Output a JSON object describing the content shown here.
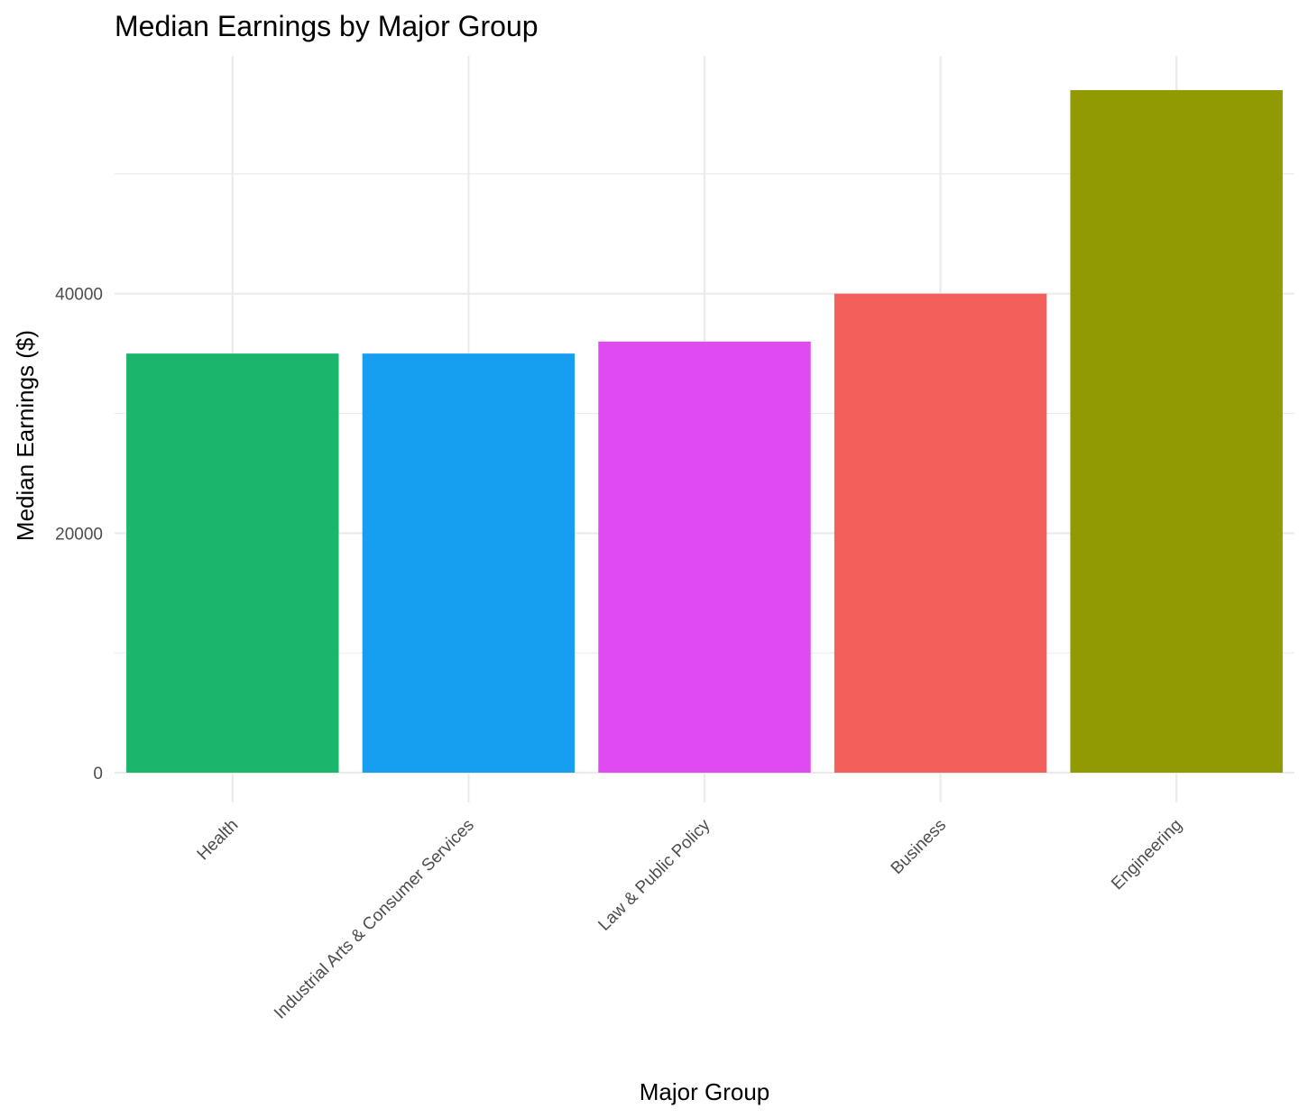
{
  "chart_data": {
    "type": "bar",
    "title": "Median Earnings by Major Group",
    "xlabel": "Major Group",
    "ylabel": "Median Earnings ($)",
    "categories": [
      "Health",
      "Industrial Arts & Consumer Services",
      "Law & Public Policy",
      "Business",
      "Engineering"
    ],
    "values": [
      35000,
      35000,
      36000,
      40000,
      57000
    ],
    "colors": [
      "#1bb56b",
      "#169ff0",
      "#df4bf0",
      "#f35f5a",
      "#919a03"
    ],
    "yticks": [
      0,
      20000,
      40000
    ],
    "yticks_minor": [
      10000,
      30000,
      50000
    ],
    "ylim": [
      0,
      59850
    ],
    "grid": true,
    "legend": "none"
  }
}
